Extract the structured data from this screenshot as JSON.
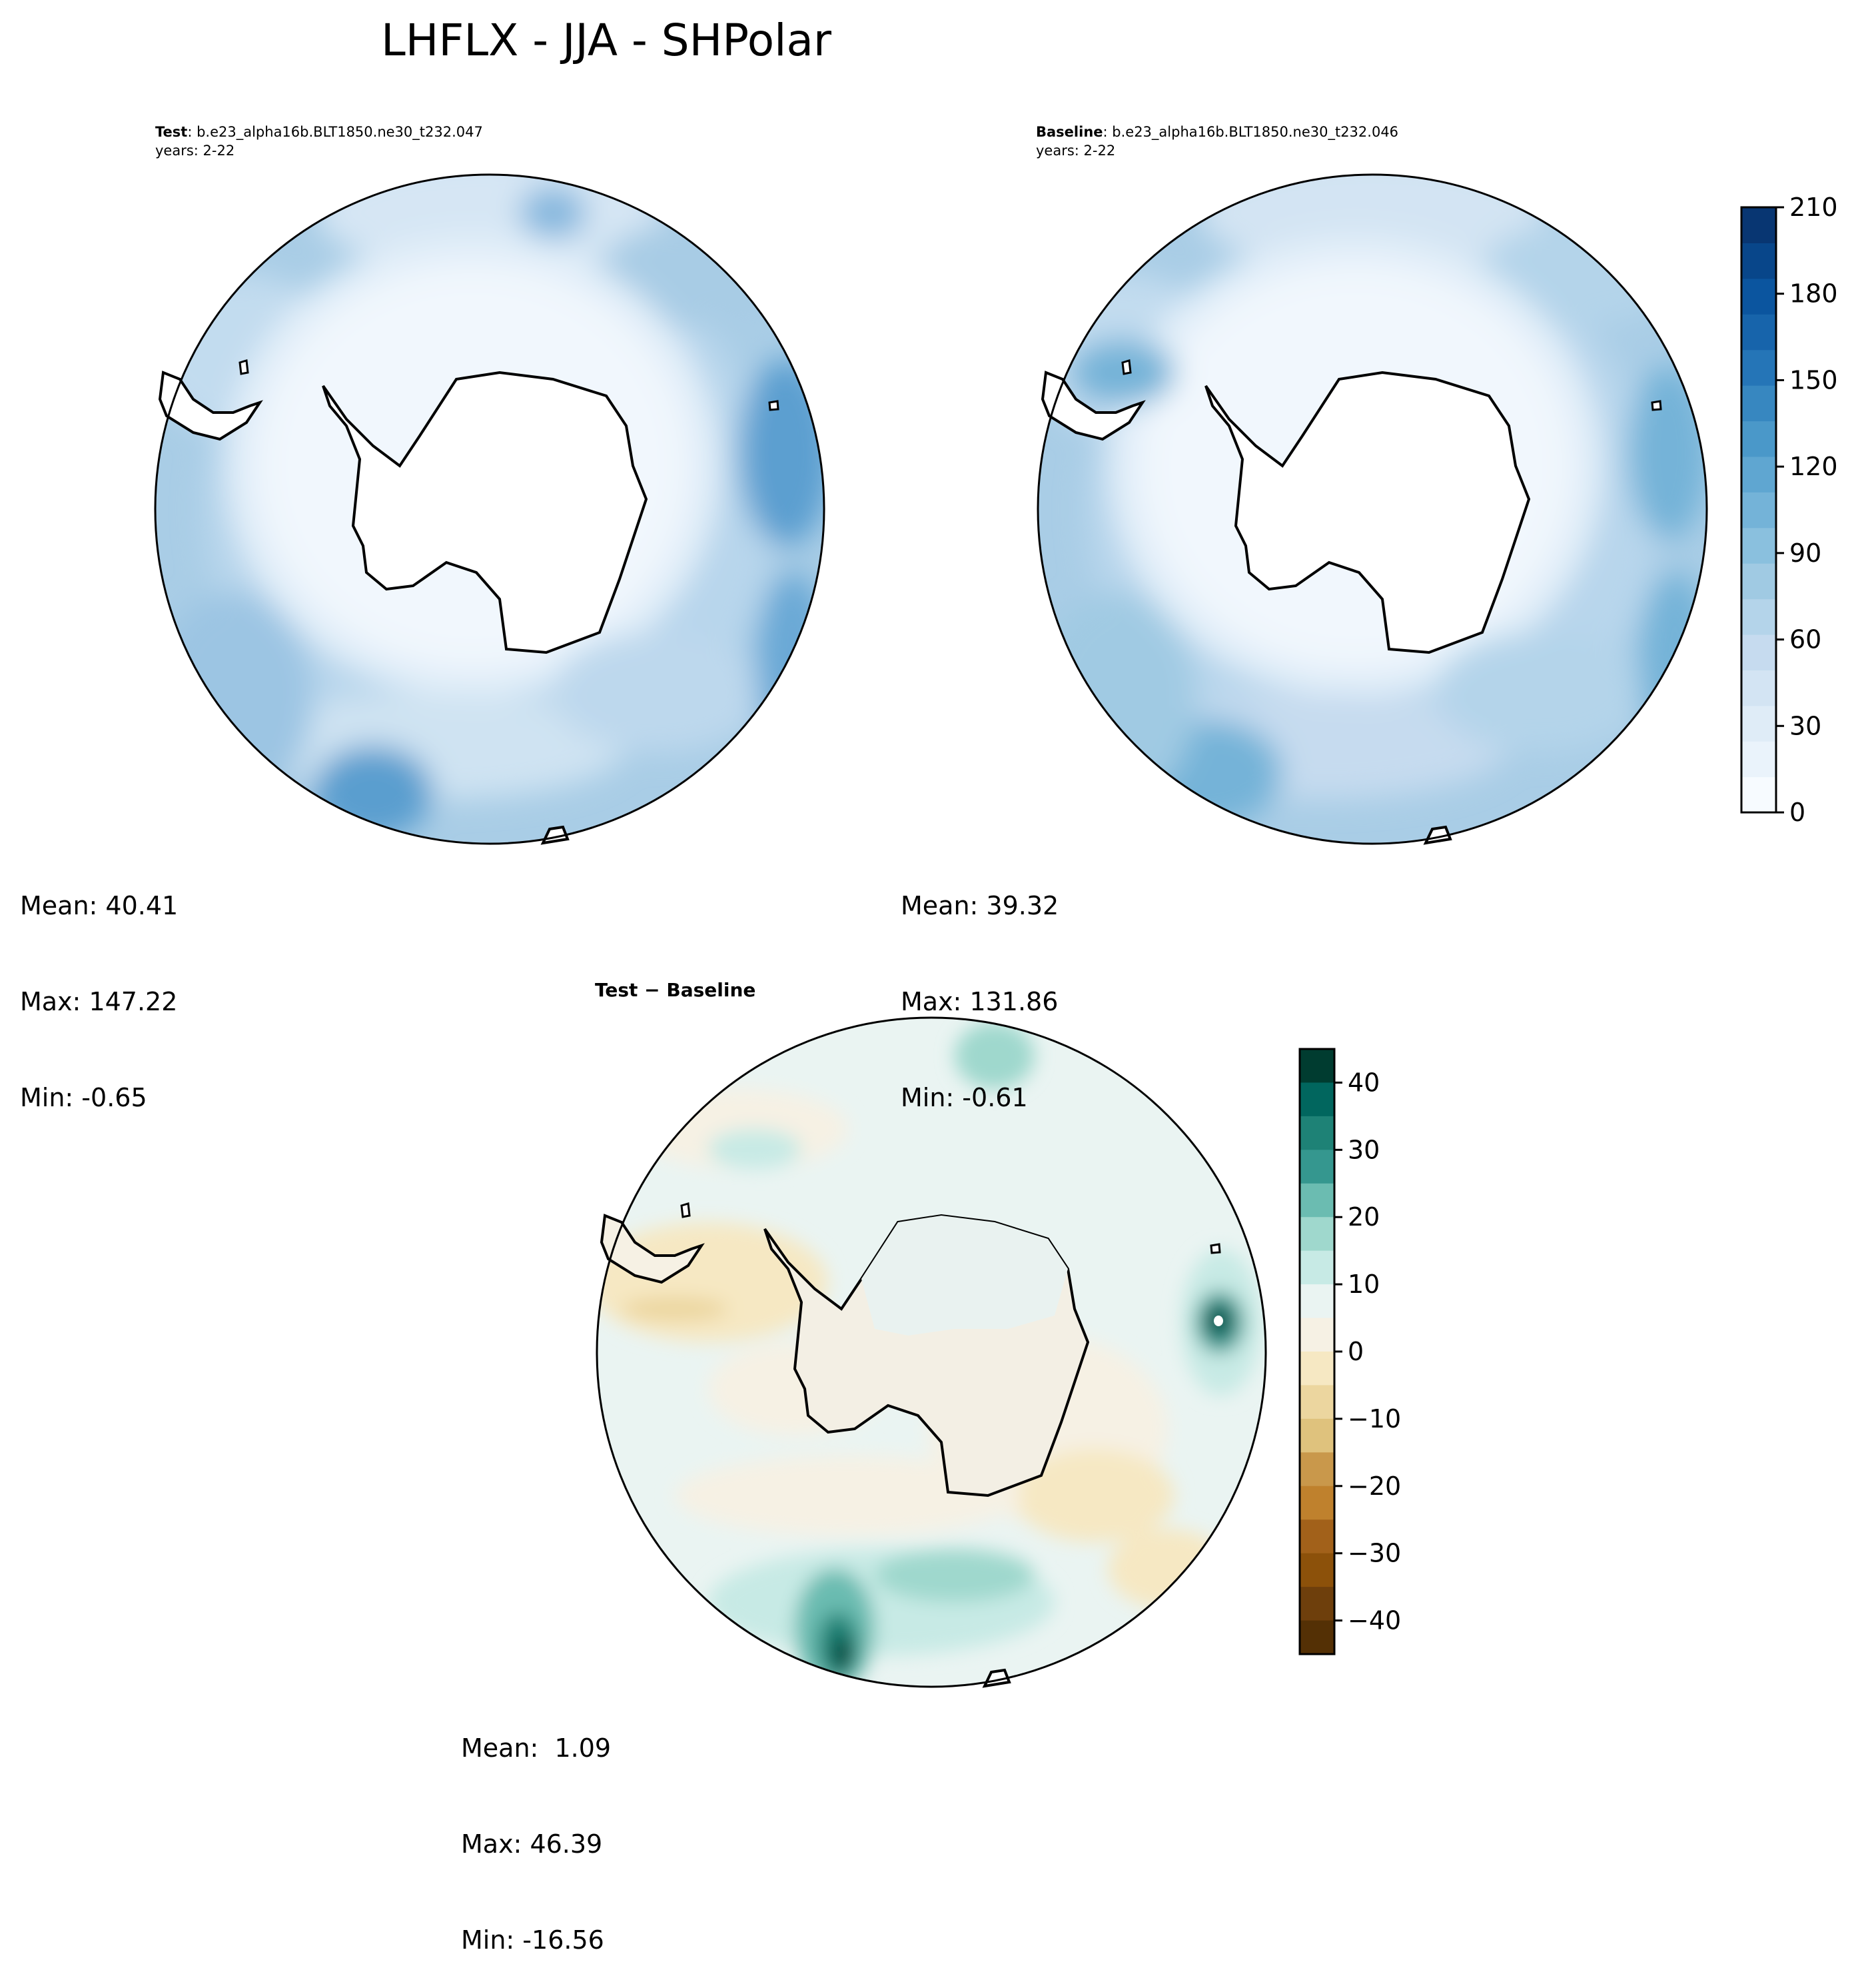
{
  "figure": {
    "title": "LHFLX - JJA - SHPolar"
  },
  "panels": {
    "test": {
      "label_bold": "Test",
      "label_rest": ": b.e23_alpha16b.BLT1850.ne30_t232.047",
      "years": "years: 2-22",
      "stats": {
        "mean": "Mean: 40.41",
        "max": "Max: 147.22",
        "min": "Min: -0.65"
      }
    },
    "baseline": {
      "label_bold": "Baseline",
      "label_rest": ": b.e23_alpha16b.BLT1850.ne30_t232.046",
      "years": "years: 2-22",
      "stats": {
        "mean": "Mean: 39.32",
        "max": "Max: 131.86",
        "min": "Min: -0.61"
      }
    },
    "diff": {
      "label": "Test − Baseline",
      "stats": {
        "mean": "Mean:  1.09",
        "max": "Max: 46.39",
        "min": "Min: -16.56"
      }
    }
  },
  "colorbars": {
    "main": {
      "ticks": [
        "0",
        "30",
        "60",
        "90",
        "120",
        "150",
        "180",
        "210"
      ],
      "colors": [
        "#f7fbff",
        "#eaf3fb",
        "#dfecf7",
        "#d3e4f3",
        "#c6dbef",
        "#b4d4ea",
        "#a0cae3",
        "#8ac0de",
        "#74b3d8",
        "#5fa6d1",
        "#4a98c9",
        "#3787c0",
        "#2575b7",
        "#1764ab",
        "#0b559f",
        "#08468a",
        "#083672"
      ],
      "colormap": "Blues"
    },
    "diff": {
      "ticks": [
        "40",
        "30",
        "20",
        "10",
        "0",
        "−10",
        "−20",
        "−30",
        "−40"
      ],
      "colors": [
        "#003c30",
        "#01665e",
        "#1e8276",
        "#35978f",
        "#6bbcb1",
        "#9fd8cd",
        "#c7eae5",
        "#eaf4f2",
        "#f6f1e4",
        "#f6e8c3",
        "#ecd69f",
        "#dfc27d",
        "#c9984b",
        "#bf812d",
        "#a2611a",
        "#8c510a",
        "#6e3f0c",
        "#543005"
      ],
      "colormap": "BrBG"
    }
  }
}
